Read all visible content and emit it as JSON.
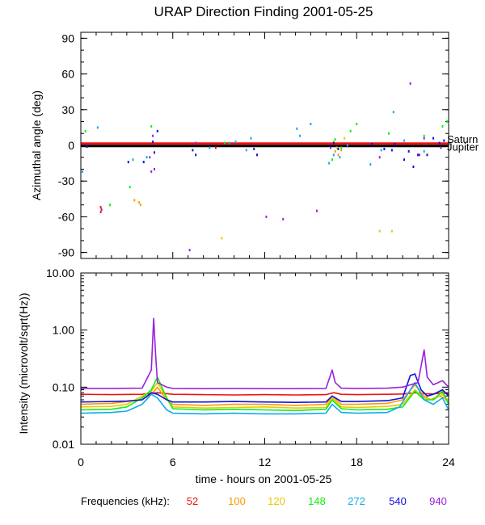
{
  "chart_data": [
    {
      "type": "scatter",
      "title": "URAP Direction Finding  2001-05-25",
      "ylabel": "Azimuthal angle (deg)",
      "xlim": [
        0,
        24
      ],
      "ylim": [
        -95,
        95
      ],
      "yticks": [
        90,
        60,
        30,
        0,
        -30,
        -60,
        -90
      ],
      "grid": false,
      "reference_lines": [
        {
          "name": "Saturn",
          "y": 1.5,
          "color": "#ee1111"
        },
        {
          "name": "Jupiter",
          "y": -0.5,
          "color": "#000000"
        }
      ],
      "series": [
        {
          "name": "52",
          "color": "#ee1111",
          "points": [
            [
              1.3,
              -52
            ],
            [
              1.35,
              -54
            ],
            [
              8.8,
              -2
            ]
          ]
        },
        {
          "name": "100",
          "color": "#ff9900",
          "points": [
            [
              3.5,
              -46
            ],
            [
              3.8,
              -48
            ],
            [
              3.9,
              -50
            ],
            [
              16.6,
              -5
            ],
            [
              16.8,
              -8
            ],
            [
              17.0,
              -4
            ]
          ]
        },
        {
          "name": "120",
          "color": "#e8c800",
          "points": [
            [
              9.2,
              -78
            ],
            [
              16.5,
              3
            ],
            [
              16.7,
              -2
            ],
            [
              17.2,
              6
            ],
            [
              19.5,
              -72
            ],
            [
              20.3,
              -72
            ]
          ]
        },
        {
          "name": "148",
          "color": "#11ee11",
          "points": [
            [
              0.3,
              12
            ],
            [
              1.9,
              -50
            ],
            [
              3.2,
              -35
            ],
            [
              4.6,
              16
            ],
            [
              9.4,
              2
            ],
            [
              16.4,
              -12
            ],
            [
              16.6,
              5
            ],
            [
              17.0,
              -2
            ],
            [
              17.6,
              12
            ],
            [
              18.0,
              18
            ],
            [
              20.1,
              10
            ],
            [
              22.4,
              8
            ],
            [
              23.6,
              16
            ],
            [
              23.9,
              20
            ]
          ]
        },
        {
          "name": "272",
          "color": "#11aaee",
          "points": [
            [
              0.1,
              -22
            ],
            [
              1.1,
              15
            ],
            [
              3.4,
              -12
            ],
            [
              4.3,
              -10
            ],
            [
              8.4,
              -2
            ],
            [
              9.7,
              2
            ],
            [
              10.1,
              3
            ],
            [
              10.8,
              -4
            ],
            [
              11.1,
              6
            ],
            [
              14.1,
              14
            ],
            [
              14.3,
              8
            ],
            [
              15.0,
              18
            ],
            [
              16.2,
              -15
            ],
            [
              16.5,
              -8
            ],
            [
              16.9,
              -10
            ],
            [
              17.4,
              0
            ],
            [
              18.9,
              -16
            ],
            [
              19.6,
              -4
            ],
            [
              20.4,
              28
            ],
            [
              21.1,
              4
            ],
            [
              22.4,
              -5
            ]
          ]
        },
        {
          "name": "540",
          "color": "#1111dd",
          "points": [
            [
              0.4,
              -1
            ],
            [
              3.1,
              -14
            ],
            [
              4.1,
              -14
            ],
            [
              4.7,
              3
            ],
            [
              4.8,
              -6
            ],
            [
              5.0,
              12
            ],
            [
              7.3,
              -4
            ],
            [
              7.5,
              -8
            ],
            [
              11.3,
              -3
            ],
            [
              11.5,
              -8
            ],
            [
              16.5,
              2
            ],
            [
              16.8,
              -3
            ],
            [
              19.0,
              1
            ],
            [
              19.8,
              -3
            ],
            [
              20.3,
              -4
            ],
            [
              20.5,
              1
            ],
            [
              21.1,
              -12
            ],
            [
              21.4,
              -5
            ],
            [
              21.7,
              -18
            ],
            [
              22.0,
              -8
            ],
            [
              22.6,
              -8
            ],
            [
              23.0,
              6
            ],
            [
              23.4,
              2
            ],
            [
              23.7,
              4
            ]
          ]
        },
        {
          "name": "940",
          "color": "#9922dd",
          "points": [
            [
              1.3,
              -56
            ],
            [
              4.5,
              -10
            ],
            [
              4.6,
              -22
            ],
            [
              4.7,
              8
            ],
            [
              4.8,
              -20
            ],
            [
              7.1,
              -88
            ],
            [
              7.5,
              2
            ],
            [
              12.1,
              -60
            ],
            [
              13.2,
              -62
            ],
            [
              15.4,
              -55
            ],
            [
              16.3,
              -2
            ],
            [
              19.5,
              -10
            ],
            [
              21.5,
              52
            ],
            [
              22.1,
              -8
            ],
            [
              22.4,
              6
            ],
            [
              23.5,
              -2
            ]
          ]
        }
      ]
    },
    {
      "type": "line",
      "ylabel": "Intensity (microvolt/sqrt(Hz))",
      "xlabel": "time - hours on 2001-05-25",
      "xlim": [
        0,
        24
      ],
      "xticks": [
        0,
        6,
        12,
        18,
        24
      ],
      "ylim": [
        0.01,
        10.0
      ],
      "yscale": "log",
      "ytick_labels": [
        "10.00",
        "1.00",
        "0.10",
        "0.01"
      ],
      "grid": false,
      "legend": {
        "title": "Frequencies (kHz):",
        "placement": "bottom"
      },
      "series": [
        {
          "name": "52",
          "color": "#ee1111",
          "x": [
            0,
            2,
            4,
            5,
            6,
            8,
            10,
            12,
            14,
            16,
            16.5,
            17,
            18,
            20,
            21,
            21.8,
            22.5,
            23,
            23.6,
            24
          ],
          "y": [
            0.075,
            0.074,
            0.075,
            0.08,
            0.075,
            0.074,
            0.073,
            0.074,
            0.073,
            0.074,
            0.08,
            0.075,
            0.074,
            0.075,
            0.076,
            0.08,
            0.077,
            0.076,
            0.08,
            0.076
          ]
        },
        {
          "name": "100",
          "color": "#ff9900",
          "x": [
            0,
            2,
            4,
            4.6,
            5,
            5.5,
            6,
            8,
            10,
            12,
            14,
            16,
            16.4,
            17,
            18,
            20,
            21,
            21.8,
            22.4,
            22.8,
            23.4,
            24
          ],
          "y": [
            0.05,
            0.052,
            0.06,
            0.075,
            0.1,
            0.065,
            0.05,
            0.048,
            0.05,
            0.05,
            0.048,
            0.05,
            0.07,
            0.05,
            0.05,
            0.052,
            0.06,
            0.11,
            0.07,
            0.06,
            0.07,
            0.06
          ]
        },
        {
          "name": "120",
          "color": "#e8c800",
          "x": [
            0,
            2,
            3,
            4,
            4.6,
            5,
            5.6,
            6,
            8,
            10,
            12,
            14,
            16,
            16.4,
            17,
            18,
            20,
            21,
            21.8,
            22.4,
            23,
            23.6,
            24
          ],
          "y": [
            0.045,
            0.046,
            0.05,
            0.07,
            0.085,
            0.12,
            0.065,
            0.045,
            0.043,
            0.044,
            0.045,
            0.043,
            0.044,
            0.065,
            0.045,
            0.044,
            0.046,
            0.05,
            0.09,
            0.065,
            0.06,
            0.075,
            0.055
          ]
        },
        {
          "name": "148",
          "color": "#11ee11",
          "x": [
            0,
            2,
            3,
            4,
            4.6,
            5,
            5.6,
            6,
            8,
            10,
            12,
            14,
            16,
            16.4,
            17,
            18,
            20,
            21,
            21.8,
            22.4,
            23,
            23.6,
            24
          ],
          "y": [
            0.04,
            0.041,
            0.045,
            0.065,
            0.09,
            0.15,
            0.065,
            0.042,
            0.04,
            0.041,
            0.04,
            0.039,
            0.041,
            0.06,
            0.042,
            0.04,
            0.041,
            0.045,
            0.085,
            0.06,
            0.06,
            0.085,
            0.05
          ]
        },
        {
          "name": "272",
          "color": "#11aaee",
          "x": [
            0,
            2,
            3,
            4,
            4.6,
            5,
            5.6,
            6,
            8,
            10,
            12,
            14,
            16,
            16.4,
            17,
            18,
            20,
            20.8,
            21.8,
            22.4,
            23,
            23.6,
            24
          ],
          "y": [
            0.035,
            0.036,
            0.038,
            0.05,
            0.075,
            0.065,
            0.04,
            0.035,
            0.034,
            0.035,
            0.034,
            0.034,
            0.035,
            0.05,
            0.036,
            0.035,
            0.036,
            0.045,
            0.12,
            0.06,
            0.05,
            0.065,
            0.04
          ]
        },
        {
          "name": "540",
          "color": "#1111dd",
          "x": [
            0,
            2,
            3,
            4,
            4.6,
            5,
            5.6,
            6,
            8,
            10,
            12,
            14,
            16,
            16.4,
            17,
            18,
            20,
            21,
            21.5,
            21.8,
            22.2,
            22.6,
            23,
            23.6,
            24
          ],
          "y": [
            0.055,
            0.056,
            0.057,
            0.06,
            0.08,
            0.075,
            0.06,
            0.055,
            0.055,
            0.056,
            0.055,
            0.054,
            0.055,
            0.07,
            0.056,
            0.056,
            0.058,
            0.065,
            0.16,
            0.17,
            0.09,
            0.07,
            0.075,
            0.09,
            0.07
          ]
        },
        {
          "name": "940",
          "color": "#9922dd",
          "x": [
            0,
            2,
            4,
            4.6,
            4.75,
            4.9,
            5,
            5.6,
            6,
            8,
            10,
            12,
            14,
            16,
            16.4,
            16.6,
            17,
            18,
            20,
            21,
            22,
            22.4,
            22.6,
            23,
            23.6,
            24
          ],
          "y": [
            0.095,
            0.095,
            0.096,
            0.2,
            1.6,
            0.3,
            0.12,
            0.1,
            0.095,
            0.094,
            0.095,
            0.094,
            0.094,
            0.095,
            0.2,
            0.12,
            0.096,
            0.095,
            0.096,
            0.1,
            0.12,
            0.45,
            0.15,
            0.11,
            0.13,
            0.1
          ]
        }
      ]
    }
  ]
}
